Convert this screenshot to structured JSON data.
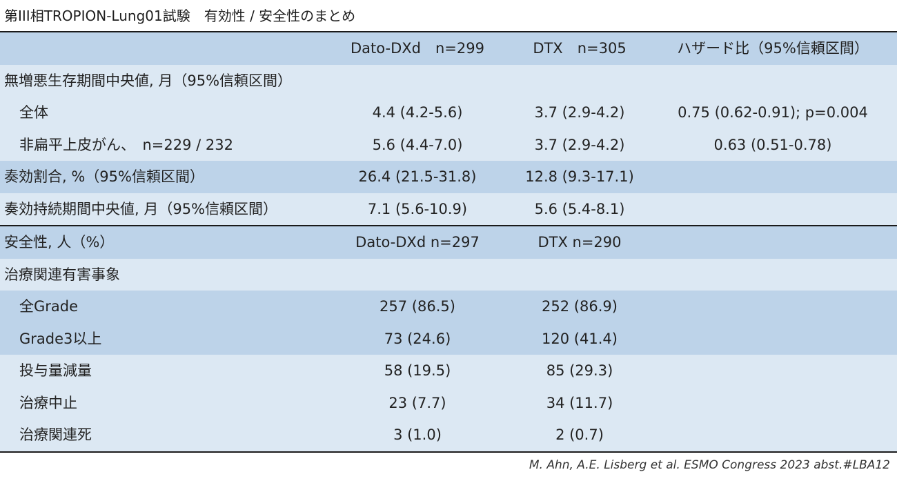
{
  "title": "第III相TROPION-Lung01試験　有効性 / 安全性のまとめ",
  "header": {
    "col1": "Dato-DXd　n=299",
    "col2": "DTX　n=305",
    "col3": "ハザード比（95%信頼区間）"
  },
  "rows": [
    {
      "label": "無増悪生存期間中央値, 月（95%信頼区間）",
      "v1": "",
      "v2": "",
      "v3": ""
    },
    {
      "label": "全体",
      "v1": "4.4 (4.2-5.6)",
      "v2": "3.7 (2.9-4.2)",
      "v3": "0.75 (0.62-0.91); p=0.004"
    },
    {
      "label": "非扁平上皮がん、　n=229 / 232",
      "v1": "5.6 (4.4-7.0)",
      "v2": "3.7 (2.9-4.2)",
      "v3": "0.63 (0.51-0.78)"
    },
    {
      "label": "奏効割合, %（95%信頼区間）",
      "v1": "26.4 (21.5-31.8)",
      "v2": "12.8 (9.3-17.1)",
      "v3": ""
    },
    {
      "label": "奏効持続期間中央値, 月（95%信頼区間）",
      "v1": "7.1 (5.6-10.9)",
      "v2": "5.6 (5.4-8.1)",
      "v3": ""
    }
  ],
  "safety_header": {
    "label": "安全性, 人（%）",
    "col1": "Dato-DXd n=297",
    "col2": "DTX n=290"
  },
  "safety_rows": [
    {
      "label": "治療関連有害事象",
      "v1": "",
      "v2": ""
    },
    {
      "label": "全Grade",
      "v1": "257 (86.5)",
      "v2": "252 (86.9)"
    },
    {
      "label": "Grade3以上",
      "v1": "73 (24.6)",
      "v2": "120 (41.4)"
    },
    {
      "label": "投与量減量",
      "v1": "58 (19.5)",
      "v2": "85 (29.3)"
    },
    {
      "label": "治療中止",
      "v1": "23 (7.7)",
      "v2": "34 (11.7)"
    },
    {
      "label": "治療関連死",
      "v1": "3 (1.0)",
      "v2": "2 (0.7)"
    }
  ],
  "source": "M. Ahn, A.E. Lisberg et al. ESMO Congress 2023 abst.#LBA12",
  "colors": {
    "row_light": "#dce8f3",
    "row_dark": "#bdd3e9",
    "rule": "#1a1a1a"
  }
}
